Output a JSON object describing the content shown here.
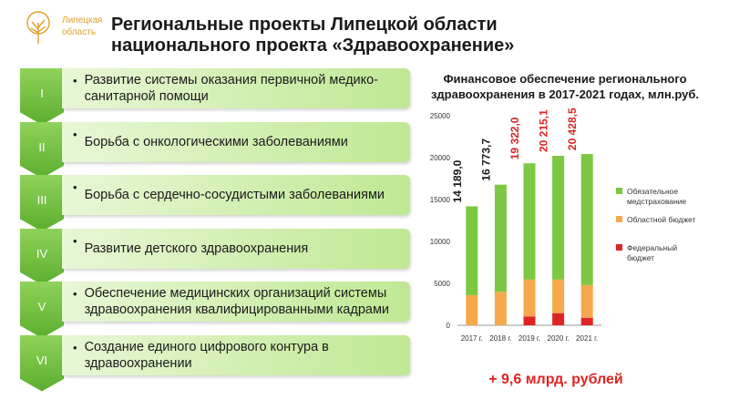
{
  "header": {
    "logo_text": "Липецкая\nобласть",
    "title": "Региональные проекты Липецкой области национального проекта «Здравоохранение»"
  },
  "projects": [
    {
      "numeral": "I",
      "label": "Развитие системы оказания первичной медико-санитарной помощи"
    },
    {
      "numeral": "II",
      "label": "Борьба с онкологическими заболеваниями"
    },
    {
      "numeral": "III",
      "label": "Борьба с сердечно-сосудистыми заболеваниями"
    },
    {
      "numeral": "IV",
      "label": "Развитие детского здравоохранения"
    },
    {
      "numeral": "V",
      "label": "Обеспечение медицинских организаций системы здравоохранения квалифицированными кадрами"
    },
    {
      "numeral": "VI",
      "label": "Создание единого цифрового контура в здравоохранении"
    }
  ],
  "colors": {
    "omc": "#7cc843",
    "regional": "#f5a94c",
    "federal": "#e02424",
    "total_dark": "#1a1a1a",
    "total_red": "#e02424",
    "accent_green": "#6cbf3a"
  },
  "chart_data": {
    "type": "bar",
    "stacked": true,
    "title": "Финансовое обеспечение регионального здравоохранения в 2017-2021 годах, млн.руб.",
    "categories": [
      "2017 г.",
      "2018 г.",
      "2019 г.",
      "2020 г.",
      "2021 г."
    ],
    "ylim": [
      0,
      25000
    ],
    "yticks": [
      0,
      5000,
      10000,
      15000,
      20000,
      25000
    ],
    "series": [
      {
        "name": "Федеральный бюджет",
        "values": [
          0,
          0,
          1050,
          1450,
          900
        ]
      },
      {
        "name": "Областной бюджет",
        "values": [
          3600,
          4000,
          4400,
          4000,
          3900
        ]
      },
      {
        "name": "Обязательное медстрахование",
        "values": [
          10589,
          12774,
          13872,
          14765,
          15629
        ]
      }
    ],
    "totals": [
      "14 189,0",
      "16 773,7",
      "19 322,0",
      "20 215,1",
      "20 428,5"
    ],
    "totals_highlight": [
      false,
      false,
      true,
      true,
      true
    ],
    "legend": [
      "Обязательное медстрахование",
      "Областной бюджет",
      "Федеральный бюджет"
    ],
    "legend_position": "right",
    "grid": false,
    "annotation": "+ 9,6 млрд. рублей"
  }
}
